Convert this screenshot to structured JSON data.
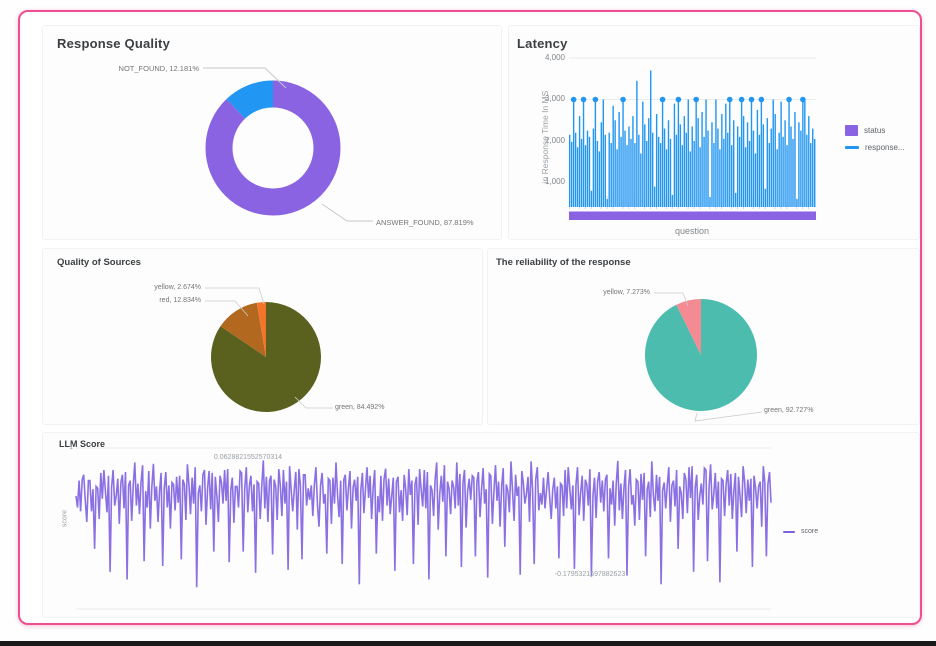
{
  "page": {
    "border_color": "#ef4f8f",
    "bottom_bar_color": "#1a1a1a"
  },
  "chart_data": [
    {
      "type": "pie",
      "subtype": "donut",
      "title": "Response Quality",
      "slices": [
        {
          "label": "ANSWER_FOUND",
          "value": 87.819,
          "color": "#8a63e3"
        },
        {
          "label": "NOT_FOUND",
          "value": 12.181,
          "color": "#2196f3"
        }
      ],
      "callouts": [
        "NOT_FOUND, 12.181%",
        "ANSWER_FOUND, 87.819%"
      ]
    },
    {
      "type": "bar",
      "title": "Latency",
      "xlabel": "question",
      "ylabel": "in Response Time In MS",
      "yticks": [
        "4,000",
        "3,000",
        "2,000",
        "1,000"
      ],
      "ylim": [
        0,
        4000
      ],
      "grid": true,
      "legend": [
        {
          "label": "status",
          "color": "#8a63e3",
          "swatch": "square"
        },
        {
          "label": "response...",
          "color": "#2196f3",
          "swatch": "line"
        }
      ],
      "marker_value": 3000,
      "marker_indices": [
        2,
        7,
        13,
        27,
        47,
        55,
        64,
        81,
        87,
        92,
        97,
        111,
        118
      ],
      "status_band_value": 200,
      "values": [
        2150,
        1980,
        3000,
        2200,
        1850,
        2600,
        2050,
        3000,
        1900,
        2250,
        2100,
        800,
        2300,
        3000,
        2000,
        1750,
        2450,
        3000,
        2150,
        600,
        2200,
        1950,
        2850,
        2500,
        1800,
        2700,
        2100,
        3000,
        2250,
        1900,
        2350,
        2050,
        2600,
        1950,
        3450,
        2150,
        1700,
        2950,
        2400,
        2000,
        2550,
        3700,
        2200,
        900,
        2650,
        2100,
        1950,
        3000,
        2300,
        1800,
        2500,
        2050,
        700,
        2900,
        2150,
        3000,
        2400,
        1900,
        2600,
        2200,
        3000,
        1750,
        2350,
        2000,
        3000,
        2550,
        1850,
        2700,
        2100,
        3000,
        2250,
        650,
        2450,
        1950,
        3000,
        2300,
        1800,
        2650,
        2050,
        2900,
        2200,
        3000,
        1900,
        2500,
        750,
        2350,
        2100,
        3000,
        2600,
        1850,
        2450,
        2000,
        3000,
        2250,
        1700,
        2750,
        2150,
        3000,
        2400,
        850,
        2550,
        1950,
        2300,
        3000,
        2650,
        1800,
        2200,
        2950,
        2100,
        2500,
        1900,
        3000,
        2350,
        2050,
        2700,
        600,
        2450,
        2250,
        3000,
        2980,
        2150,
        2600,
        1950,
        2300,
        2050
      ]
    },
    {
      "type": "pie",
      "title": "Quality of Sources",
      "slices": [
        {
          "label": "green",
          "value": 84.492,
          "color": "#5a611f"
        },
        {
          "label": "red",
          "value": 12.834,
          "color": "#b2691f"
        },
        {
          "label": "yellow",
          "value": 2.674,
          "color": "#f4752a"
        }
      ],
      "callouts": [
        "yellow, 2.674%",
        "red, 12.834%",
        "green, 84.492%"
      ]
    },
    {
      "type": "pie",
      "title": "The reliability of the response",
      "slices": [
        {
          "label": "green",
          "value": 92.727,
          "color": "#4cbcae"
        },
        {
          "label": "yellow",
          "value": 7.273,
          "color": "#f48b93"
        }
      ],
      "callouts": [
        "yellow, 7.273%",
        "green, 92.727%"
      ]
    },
    {
      "type": "line",
      "title": "LLM Score",
      "ylabel": "score",
      "ytick_top": "1",
      "ylim": [
        -1,
        1
      ],
      "color": "#7d60e0",
      "legend": [
        {
          "label": "score",
          "color": "#7d60e0",
          "swatch": "line"
        }
      ],
      "annotations": [
        "0.0628821552570314",
        "-0.1795321697882623"
      ],
      "values": [
        0.01,
        -0.02,
        0.03,
        -0.04,
        0.02,
        0.05,
        -0.01,
        -0.06,
        0.02,
        0.04,
        -0.03,
        0.01,
        -0.12,
        0.03,
        0.02,
        -0.05,
        0.04,
        -0.02,
        0.06,
        0.01,
        -0.04,
        0.03,
        -0.15,
        0.02,
        0.05,
        -0.03,
        0.01,
        0.04,
        -0.06,
        0.02,
        0.03,
        -0.02,
        0.05,
        -0.18,
        0.01,
        0.04,
        -0.05,
        0.02,
        0.06,
        -0.01,
        0.03,
        -0.04,
        0.02,
        0.05,
        -0.13,
        0.01,
        -0.03,
        0.04,
        -0.06,
        0.02,
        0.063,
        -0.02,
        0.03,
        -0.05,
        0.01,
        0.04,
        -0.16,
        0.02,
        0.05,
        -0.03,
        0.01,
        -0.06,
        0.03,
        0.02,
        -0.04,
        0.05,
        -0.01,
        0.04,
        -0.14,
        0.02,
        0.03,
        -0.05,
        0.06,
        0.01,
        -0.03,
        0.04,
        -0.02,
        0.05,
        -0.18,
        0.01,
        0.02,
        -0.04,
        0.03,
        0.06,
        -0.06,
        0.01,
        0.04,
        -0.02,
        0.05,
        -0.12,
        0.03,
        0.01,
        -0.05,
        0.04,
        0.02,
        -0.03,
        0.06,
        -0.01,
        0.05,
        -0.15,
        0.02,
        0.04,
        -0.06,
        0.01,
        0.03,
        -0.02,
        0.05,
        0.04,
        -0.13,
        0.02,
        0.06,
        -0.04,
        0.01,
        0.05,
        -0.03,
        0.02,
        -0.17,
        0.04,
        0.03,
        -0.05,
        0.01,
        0.06,
        -0.02,
        0.04,
        -0.06,
        0.02,
        0.05,
        -0.12,
        0.03,
        0.01,
        -0.04,
        0.06,
        0.02,
        -0.05,
        0.04,
        -0.01,
        0.03,
        -0.16,
        0.05,
        0.02,
        -0.03,
        0.01,
        0.04,
        -0.06,
        0.06,
        0.02,
        -0.14,
        0.03,
        0.05,
        -0.02
      ]
    }
  ]
}
